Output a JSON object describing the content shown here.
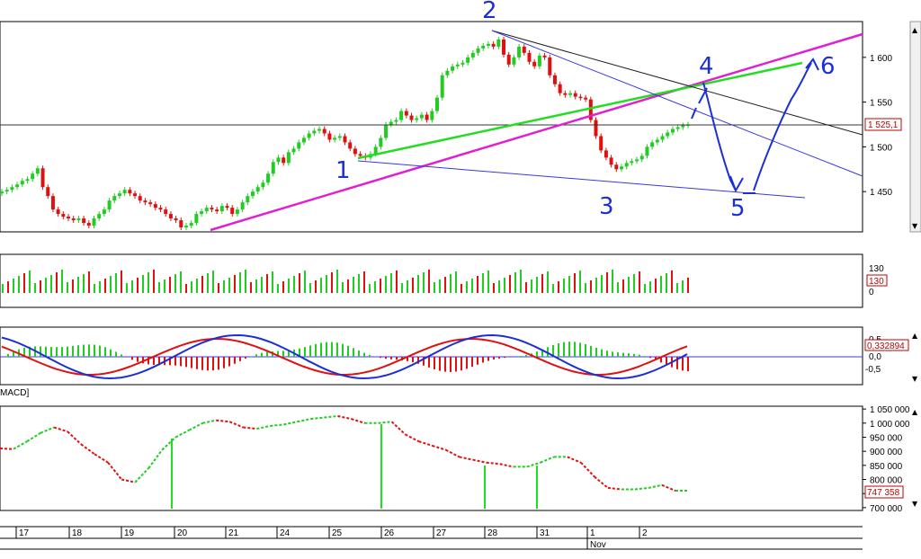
{
  "chart_data": [
    {
      "type": "candlestick",
      "panel": "price",
      "yticks": [
        "1 600",
        "1 550",
        "1 500",
        "1 450"
      ],
      "ylim": [
        1405,
        1640
      ],
      "last_price_label": "1 525,1",
      "last_price": 1525.1,
      "close": [
        1450,
        1452,
        1455,
        1458,
        1462,
        1464,
        1470,
        1476,
        1455,
        1445,
        1430,
        1425,
        1422,
        1420,
        1418,
        1420,
        1415,
        1412,
        1420,
        1425,
        1430,
        1440,
        1445,
        1448,
        1452,
        1448,
        1445,
        1440,
        1438,
        1436,
        1432,
        1430,
        1425,
        1420,
        1418,
        1410,
        1412,
        1415,
        1425,
        1428,
        1432,
        1430,
        1428,
        1434,
        1432,
        1425,
        1430,
        1438,
        1445,
        1450,
        1455,
        1460,
        1470,
        1483,
        1488,
        1482,
        1494,
        1498,
        1505,
        1510,
        1515,
        1518,
        1520,
        1515,
        1508,
        1510,
        1512,
        1505,
        1498,
        1492,
        1490,
        1488,
        1492,
        1500,
        1510,
        1525,
        1528,
        1530,
        1540,
        1535,
        1530,
        1532,
        1536,
        1530,
        1540,
        1555,
        1580,
        1585,
        1590,
        1592,
        1594,
        1600,
        1605,
        1610,
        1613,
        1615,
        1612,
        1620,
        1603,
        1592,
        1600,
        1612,
        1605,
        1595,
        1590,
        1602,
        1600,
        1580,
        1570,
        1560,
        1558,
        1560,
        1556,
        1555,
        1553,
        1530,
        1512,
        1496,
        1488,
        1480,
        1475,
        1478,
        1482,
        1484,
        1486,
        1490,
        1500,
        1505,
        1508,
        1512,
        1516,
        1520,
        1522,
        1524,
        1525
      ],
      "bull_color": "#22cc22",
      "bear_color": "#e01010"
    },
    {
      "type": "bar",
      "panel": "volume",
      "yticks": [
        "130",
        "0"
      ],
      "value_label": "130",
      "ylim": [
        0,
        150
      ]
    },
    {
      "type": "bar+line",
      "panel": "macd",
      "yticks": [
        "0,5",
        "0,0",
        "-0,5"
      ],
      "value_label": "0,332894",
      "label": "MACD]",
      "ylim": [
        -0.7,
        0.7
      ]
    },
    {
      "type": "line",
      "panel": "oscillator",
      "yticks": [
        "1 050 000",
        "1 000 000",
        "950 000",
        "900 000",
        "850 000",
        "800 000",
        "750 000",
        "700 000"
      ],
      "value_label": "747 358",
      "ylim": [
        690000,
        1060000
      ]
    },
    {
      "type": "time_axis",
      "days": [
        "17",
        "18",
        "19",
        "20",
        "21",
        "24",
        "25",
        "26",
        "27",
        "28",
        "31",
        "1",
        "2"
      ],
      "month_label": "Nov"
    }
  ],
  "annotations": {
    "wave_labels": [
      "1",
      "2",
      "3",
      "4",
      "5",
      "6"
    ],
    "trend_colors": {
      "magenta": "#e020d0",
      "green": "#22dd22",
      "black": "#202020",
      "blue": "#3838e0",
      "hand": "#1c2fd6"
    }
  }
}
